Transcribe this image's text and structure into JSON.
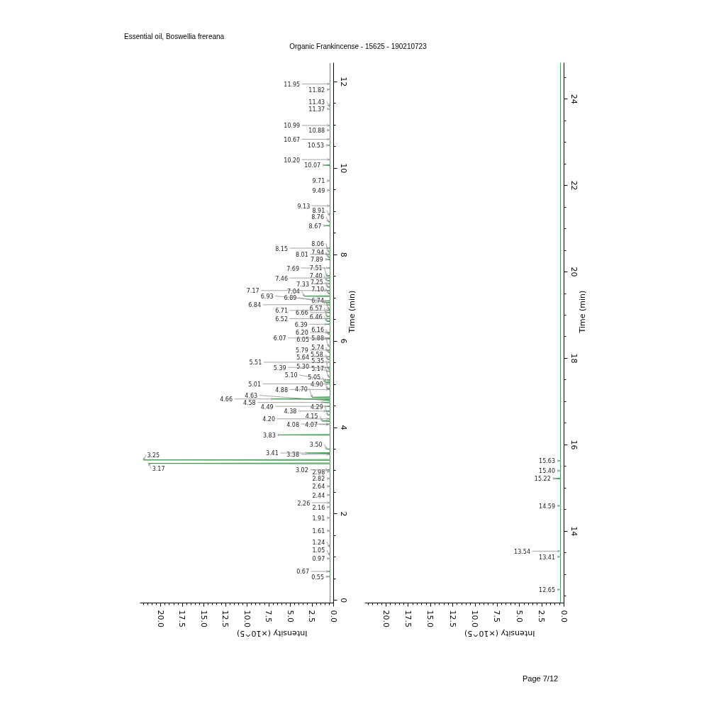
{
  "chart_data": [
    {
      "type": "line",
      "title": "Essential oil, Boswellia frereana",
      "subtitle": "Organic Frankincense - 15625 - 190210723",
      "xlabel": "Intensity (×10^5)",
      "ylabel": "Time (min)",
      "xlim": [
        22.4,
        0
      ],
      "ylim": [
        -0.06,
        12.44
      ],
      "xticks": [
        {
          "value": 0,
          "label": "0.0"
        },
        {
          "value": 0.5,
          "label": null
        },
        {
          "value": 1,
          "label": null
        },
        {
          "value": 1.5,
          "label": null
        },
        {
          "value": 2,
          "label": null
        },
        2.5,
        {
          "value": 3,
          "label": null
        },
        {
          "value": 3.5,
          "label": null
        },
        {
          "value": 4,
          "label": null
        },
        {
          "value": 4.5,
          "label": null
        },
        {
          "value": 5,
          "label": "5.0"
        },
        {
          "value": 5.5,
          "label": null
        },
        {
          "value": 6,
          "label": null
        },
        {
          "value": 6.5,
          "label": null
        },
        {
          "value": 7,
          "label": null
        },
        7.5,
        {
          "value": 8,
          "label": null
        },
        {
          "value": 8.5,
          "label": null
        },
        {
          "value": 9,
          "label": null
        },
        {
          "value": 9.5,
          "label": null
        },
        {
          "value": 10,
          "label": "10.0"
        },
        {
          "value": 10.5,
          "label": null
        },
        {
          "value": 11,
          "label": null
        },
        {
          "value": 11.5,
          "label": null
        },
        {
          "value": 12,
          "label": null
        },
        12.5,
        {
          "value": 13,
          "label": null
        },
        {
          "value": 13.5,
          "label": null
        },
        {
          "value": 14,
          "label": null
        },
        {
          "value": 14.5,
          "label": null
        },
        {
          "value": 15,
          "label": "15.0"
        },
        {
          "value": 15.5,
          "label": null
        },
        {
          "value": 16,
          "label": null
        },
        {
          "value": 16.5,
          "label": null
        },
        {
          "value": 17,
          "label": null
        },
        17.5,
        {
          "value": 18,
          "label": null
        },
        {
          "value": 18.5,
          "label": null
        },
        {
          "value": 19,
          "label": null
        },
        {
          "value": 19.5,
          "label": null
        },
        {
          "value": 20,
          "label": "20.0"
        },
        {
          "value": 20.5,
          "label": null
        },
        {
          "value": 21,
          "label": null
        },
        {
          "value": 21.5,
          "label": null
        },
        {
          "value": 22,
          "label": null
        }
      ],
      "yticks": [
        0,
        {
          "value": 0.5,
          "label": null
        },
        {
          "value": 1,
          "label": null
        },
        {
          "value": 1.5,
          "label": null
        },
        2,
        {
          "value": 2.5,
          "label": null
        },
        {
          "value": 3,
          "label": null
        },
        {
          "value": 3.5,
          "label": null
        },
        4,
        {
          "value": 4.5,
          "label": null
        },
        {
          "value": 5,
          "label": null
        },
        {
          "value": 5.5,
          "label": null
        },
        6,
        {
          "value": 6.5,
          "label": null
        },
        {
          "value": 7,
          "label": null
        },
        {
          "value": 7.5,
          "label": null
        },
        8,
        {
          "value": 8.5,
          "label": null
        },
        {
          "value": 9,
          "label": null
        },
        {
          "value": 9.5,
          "label": null
        },
        10,
        {
          "value": 10.5,
          "label": null
        },
        {
          "value": 11,
          "label": null
        },
        {
          "value": 11.5,
          "label": null
        },
        12
      ],
      "series": [
        {
          "color": "#3c9a4c",
          "x": [
            0.4,
            0.4,
            0.6,
            0.4,
            0.4,
            0.6,
            0.4,
            0.4,
            0.5,
            0.4,
            0.4,
            0.5,
            0.4,
            0.4,
            0.5,
            0.4,
            0.4,
            0.5,
            0.4,
            0.4,
            0.5,
            0.4,
            0.4,
            0.5,
            0.4,
            0.4,
            0.5,
            0.4,
            0.4,
            0.5,
            0.4,
            0.4,
            0.5,
            0.4,
            0.4,
            0.5,
            0.4,
            0.4,
            0.5,
            0.4,
            0.4,
            0.7,
            0.4,
            0.4,
            21.4,
            0.4,
            0.4,
            22.0,
            0.4,
            0.4,
            0.6,
            0.4,
            0.4,
            3.0,
            0.4,
            0.4,
            0.8,
            0.4,
            0.4,
            6.2,
            0.4,
            0.4,
            0.6,
            0.6,
            0.4,
            0.4,
            1.3,
            0.4,
            0.4,
            0.6,
            0.4,
            0.4,
            0.7,
            0.4,
            0.4,
            0.9,
            0.4,
            0.4,
            0.8,
            0.4,
            0.4,
            1.2,
            0.4,
            0.4,
            1.0,
            0.4,
            0.4,
            7.0,
            0.4,
            0.4,
            2.5,
            0.4,
            0.4,
            0.6,
            0.4,
            0.7,
            0.4,
            0.4,
            0.6,
            0.4,
            0.4,
            1.0,
            0.4,
            0.4,
            0.8,
            0.4,
            0.4,
            0.6,
            0.4,
            0.4,
            0.6,
            0.4,
            0.4,
            0.6,
            0.4,
            0.4,
            0.8,
            0.4,
            0.4,
            0.5,
            0.4,
            0.4,
            0.7,
            0.4,
            0.4,
            0.6,
            0.4,
            0.4,
            0.6,
            0.4,
            0.4,
            0.7,
            0.4,
            0.4,
            0.6,
            0.4,
            0.4,
            0.6,
            0.4,
            0.8,
            0.4,
            0.4,
            0.6,
            0.4,
            0.4,
            0.7,
            0.4,
            0.4,
            0.8,
            0.4,
            0.4,
            0.8,
            0.4,
            0.4,
            0.6,
            0.4,
            0.4,
            0.8,
            0.4,
            0.4,
            0.7,
            0.4,
            0.4,
            0.6,
            0.4,
            0.4,
            0.6,
            0.4,
            0.4,
            0.6,
            0.4,
            0.4,
            0.9,
            0.4,
            0.4,
            0.8,
            0.4,
            0.4,
            3.4,
            0.4,
            0.4,
            0.6,
            0.4,
            0.4,
            0.8,
            0.4,
            0.4,
            0.7,
            0.4,
            0.4,
            0.6,
            0.4,
            0.4,
            0.8,
            0.4,
            0.4,
            0.6,
            0.4,
            0.4,
            0.8,
            0.4,
            0.4,
            0.6,
            0.4,
            0.4,
            0.7,
            0.4,
            0.4,
            0.6,
            0.4,
            0.4,
            0.7,
            0.4,
            0.4,
            0.6,
            0.4,
            0.4,
            0.6,
            0.4,
            0.4,
            0.9,
            0.4,
            0.4,
            0.6,
            0.4,
            0.4,
            0.5,
            0.4,
            0.4,
            0.5,
            0.4,
            0.4,
            0.5,
            0.4,
            0.4,
            0.5,
            0.4,
            0.4,
            1.0,
            0.4,
            0.4,
            0.5,
            0.4,
            0.4,
            0.6,
            0.4,
            0.4,
            0.5,
            0.4,
            0.4,
            0.5,
            0.4,
            0.4,
            0.5,
            0.4,
            0.4,
            0.5,
            0.4,
            0.4,
            0.5,
            0.4,
            0.4,
            0.5,
            0.4,
            0.4,
            0.5,
            0.4,
            0.4
          ],
          "values": [
            -0.06,
            0.54,
            0.55,
            0.56,
            0.66,
            0.67,
            0.68,
            0.96,
            0.97,
            0.98,
            1.04,
            1.05,
            1.06,
            1.23,
            1.24,
            1.25,
            1.6,
            1.61,
            1.62,
            1.9,
            1.91,
            1.92,
            2.15,
            2.16,
            2.17,
            2.25,
            2.26,
            2.27,
            2.43,
            2.44,
            2.45,
            2.63,
            2.64,
            2.65,
            2.81,
            2.82,
            2.83,
            2.97,
            2.98,
            2.99,
            3.01,
            3.02,
            3.03,
            3.16,
            3.17,
            3.18,
            3.24,
            3.25,
            3.26,
            3.37,
            3.38,
            3.39,
            3.4,
            3.41,
            3.42,
            3.49,
            3.5,
            3.51,
            3.82,
            3.83,
            3.84,
            4.06,
            4.07,
            4.08,
            4.09,
            4.14,
            4.15,
            4.16,
            4.19,
            4.2,
            4.21,
            4.28,
            4.29,
            4.3,
            4.37,
            4.38,
            4.39,
            4.48,
            4.49,
            4.5,
            4.57,
            4.58,
            4.59,
            4.62,
            4.63,
            4.64,
            4.65,
            4.66,
            4.67,
            4.69,
            4.7,
            4.71,
            4.87,
            4.88,
            4.89,
            4.9,
            4.91,
            5,
            5.01,
            5.02,
            5.04,
            5.05,
            5.06,
            5.09,
            5.1,
            5.11,
            5.16,
            5.17,
            5.18,
            5.29,
            5.3,
            5.31,
            5.34,
            5.35,
            5.36,
            5.38,
            5.39,
            5.4,
            5.5,
            5.51,
            5.52,
            5.57,
            5.58,
            5.59,
            5.63,
            5.64,
            5.65,
            5.73,
            5.74,
            5.75,
            5.78,
            5.79,
            5.8,
            5.87,
            5.88,
            5.89,
            6.04,
            6.05,
            6.06,
            6.07,
            6.08,
            6.15,
            6.16,
            6.17,
            6.19,
            6.2,
            6.21,
            6.38,
            6.39,
            6.4,
            6.45,
            6.46,
            6.47,
            6.51,
            6.52,
            6.53,
            6.56,
            6.57,
            6.58,
            6.65,
            6.66,
            6.67,
            6.7,
            6.71,
            6.72,
            6.73,
            6.74,
            6.75,
            6.83,
            6.84,
            6.85,
            6.88,
            6.89,
            6.9,
            6.92,
            6.93,
            6.94,
            7.03,
            7.04,
            7.05,
            7.09,
            7.1,
            7.11,
            7.16,
            7.17,
            7.18,
            7.24,
            7.25,
            7.26,
            7.32,
            7.33,
            7.34,
            7.39,
            7.4,
            7.41,
            7.45,
            7.46,
            7.47,
            7.5,
            7.51,
            7.52,
            7.68,
            7.69,
            7.7,
            7.88,
            7.89,
            7.9,
            7.93,
            7.94,
            7.95,
            8,
            8.01,
            8.02,
            8.05,
            8.06,
            8.07,
            8.14,
            8.15,
            8.16,
            8.66,
            8.67,
            8.68,
            8.75,
            8.76,
            8.77,
            8.9,
            8.91,
            8.92,
            9.12,
            9.13,
            9.14,
            9.48,
            9.49,
            9.5,
            9.7,
            9.71,
            9.72,
            10.06,
            10.07,
            10.08,
            10.19,
            10.2,
            10.21,
            10.52,
            10.53,
            10.54,
            10.66,
            10.67,
            10.68,
            10.87,
            10.88,
            10.89,
            10.98,
            10.99,
            11,
            11.36,
            11.37,
            11.38,
            11.42,
            11.43,
            11.44,
            11.81,
            11.82,
            11.83,
            11.94,
            11.95,
            11.96,
            12.44
          ]
        }
      ],
      "annotations": [
        {
          "text": "0.55",
          "x": 0.6,
          "y": 0.55
        },
        {
          "text": "0.67",
          "x": 0.6,
          "y": 0.67
        },
        {
          "text": "0.97",
          "x": 0.5,
          "y": 0.97
        },
        {
          "text": "1.05",
          "x": 0.5,
          "y": 1.05
        },
        {
          "text": "1.24",
          "x": 0.5,
          "y": 1.24
        },
        {
          "text": "1.61",
          "x": 0.5,
          "y": 1.61
        },
        {
          "text": "1.91",
          "x": 0.5,
          "y": 1.91
        },
        {
          "text": "2.16",
          "x": 0.5,
          "y": 2.16
        },
        {
          "text": "2.26",
          "x": 0.5,
          "y": 2.26
        },
        {
          "text": "2.44",
          "x": 0.5,
          "y": 2.44
        },
        {
          "text": "2.64",
          "x": 0.5,
          "y": 2.64
        },
        {
          "text": "2.82",
          "x": 0.5,
          "y": 2.82
        },
        {
          "text": "2.98",
          "x": 0.5,
          "y": 2.98
        },
        {
          "text": "3.02",
          "x": 0.7,
          "y": 3.02
        },
        {
          "text": "3.17",
          "x": 21.4,
          "y": 3.17
        },
        {
          "text": "3.25",
          "x": 22.0,
          "y": 3.25
        },
        {
          "text": "3.38",
          "x": 0.6,
          "y": 3.38
        },
        {
          "text": "3.41",
          "x": 3.0,
          "y": 3.41
        },
        {
          "text": "3.50",
          "x": 0.8,
          "y": 3.5
        },
        {
          "text": "3.83",
          "x": 6.2,
          "y": 3.83
        },
        {
          "text": "4.07",
          "x": 0.6,
          "y": 4.07
        },
        {
          "text": "4.08",
          "x": 0.6,
          "y": 4.08
        },
        {
          "text": "4.15",
          "x": 1.3,
          "y": 4.15
        },
        {
          "text": "4.20",
          "x": 0.6,
          "y": 4.2
        },
        {
          "text": "4.29",
          "x": 0.7,
          "y": 4.29
        },
        {
          "text": "4.38",
          "x": 0.9,
          "y": 4.38
        },
        {
          "text": "4.49",
          "x": 0.8,
          "y": 4.49
        },
        {
          "text": "4.58",
          "x": 1.2,
          "y": 4.58
        },
        {
          "text": "4.63",
          "x": 1.0,
          "y": 4.63
        },
        {
          "text": "4.66",
          "x": 7.0,
          "y": 4.66
        },
        {
          "text": "4.70",
          "x": 2.5,
          "y": 4.7
        },
        {
          "text": "4.88",
          "x": 0.6,
          "y": 4.88
        },
        {
          "text": "4.90",
          "x": 0.7,
          "y": 4.9
        },
        {
          "text": "5.01",
          "x": 0.6,
          "y": 5.01
        },
        {
          "text": "5.05",
          "x": 1.0,
          "y": 5.05
        },
        {
          "text": "5.10",
          "x": 0.8,
          "y": 5.1
        },
        {
          "text": "5.17",
          "x": 0.6,
          "y": 5.17
        },
        {
          "text": "5.30",
          "x": 0.6,
          "y": 5.3
        },
        {
          "text": "5.35",
          "x": 0.6,
          "y": 5.35
        },
        {
          "text": "5.39",
          "x": 0.8,
          "y": 5.39
        },
        {
          "text": "5.51",
          "x": 0.5,
          "y": 5.51
        },
        {
          "text": "5.58",
          "x": 0.7,
          "y": 5.58
        },
        {
          "text": "5.64",
          "x": 0.6,
          "y": 5.64
        },
        {
          "text": "5.74",
          "x": 0.6,
          "y": 5.74
        },
        {
          "text": "5.79",
          "x": 0.7,
          "y": 5.79
        },
        {
          "text": "5.88",
          "x": 0.6,
          "y": 5.88
        },
        {
          "text": "6.05",
          "x": 0.6,
          "y": 6.05
        },
        {
          "text": "6.07",
          "x": 0.8,
          "y": 6.07
        },
        {
          "text": "6.16",
          "x": 0.6,
          "y": 6.16
        },
        {
          "text": "6.20",
          "x": 0.7,
          "y": 6.2
        },
        {
          "text": "6.39",
          "x": 0.8,
          "y": 6.39
        },
        {
          "text": "6.46",
          "x": 0.8,
          "y": 6.46
        },
        {
          "text": "6.52",
          "x": 0.6,
          "y": 6.52
        },
        {
          "text": "6.57",
          "x": 0.8,
          "y": 6.57
        },
        {
          "text": "6.66",
          "x": 0.7,
          "y": 6.66
        },
        {
          "text": "6.71",
          "x": 0.6,
          "y": 6.71
        },
        {
          "text": "6.74",
          "x": 0.6,
          "y": 6.74
        },
        {
          "text": "6.84",
          "x": 0.6,
          "y": 6.84
        },
        {
          "text": "6.89",
          "x": 0.9,
          "y": 6.89
        },
        {
          "text": "6.93",
          "x": 0.8,
          "y": 6.93
        },
        {
          "text": "7.04",
          "x": 3.4,
          "y": 7.04
        },
        {
          "text": "7.10",
          "x": 0.6,
          "y": 7.1
        },
        {
          "text": "7.17",
          "x": 0.8,
          "y": 7.17
        },
        {
          "text": "7.25",
          "x": 0.7,
          "y": 7.25
        },
        {
          "text": "7.33",
          "x": 0.6,
          "y": 7.33
        },
        {
          "text": "7.40",
          "x": 0.8,
          "y": 7.4
        },
        {
          "text": "7.46",
          "x": 0.6,
          "y": 7.46
        },
        {
          "text": "7.51",
          "x": 0.8,
          "y": 7.51
        },
        {
          "text": "7.69",
          "x": 0.6,
          "y": 7.69
        },
        {
          "text": "7.89",
          "x": 0.7,
          "y": 7.89
        },
        {
          "text": "7.94",
          "x": 0.6,
          "y": 7.94
        },
        {
          "text": "8.01",
          "x": 0.7,
          "y": 8.01
        },
        {
          "text": "8.06",
          "x": 0.6,
          "y": 8.06
        },
        {
          "text": "8.15",
          "x": 0.6,
          "y": 8.15
        },
        {
          "text": "8.67",
          "x": 0.9,
          "y": 8.67
        },
        {
          "text": "8.76",
          "x": 0.6,
          "y": 8.76
        },
        {
          "text": "8.91",
          "x": 0.5,
          "y": 8.91
        },
        {
          "text": "9.13",
          "x": 0.5,
          "y": 9.13
        },
        {
          "text": "9.49",
          "x": 0.5,
          "y": 9.49
        },
        {
          "text": "9.71",
          "x": 0.5,
          "y": 9.71
        },
        {
          "text": "10.07",
          "x": 1.0,
          "y": 10.07
        },
        {
          "text": "10.20",
          "x": 0.5,
          "y": 10.2
        },
        {
          "text": "10.53",
          "x": 0.6,
          "y": 10.53
        },
        {
          "text": "10.67",
          "x": 0.5,
          "y": 10.67
        },
        {
          "text": "10.88",
          "x": 0.5,
          "y": 10.88
        },
        {
          "text": "10.99",
          "x": 0.5,
          "y": 10.99
        },
        {
          "text": "11.37",
          "x": 0.5,
          "y": 11.37
        },
        {
          "text": "11.43",
          "x": 0.5,
          "y": 11.43
        },
        {
          "text": "11.82",
          "x": 0.5,
          "y": 11.82
        },
        {
          "text": "11.95",
          "x": 0.5,
          "y": 11.95
        }
      ]
    },
    {
      "type": "line",
      "xlabel": "Intensity (×10^5)",
      "ylabel": "Time (min)",
      "xlim": [
        22.4,
        0
      ],
      "ylim": [
        12.34,
        24.84
      ],
      "xticks": [
        {
          "value": 0,
          "label": "0.0"
        },
        {
          "value": 0.5,
          "label": null
        },
        {
          "value": 1,
          "label": null
        },
        {
          "value": 1.5,
          "label": null
        },
        {
          "value": 2,
          "label": null
        },
        2.5,
        {
          "value": 3,
          "label": null
        },
        {
          "value": 3.5,
          "label": null
        },
        {
          "value": 4,
          "label": null
        },
        {
          "value": 4.5,
          "label": null
        },
        {
          "value": 5,
          "label": "5.0"
        },
        {
          "value": 5.5,
          "label": null
        },
        {
          "value": 6,
          "label": null
        },
        {
          "value": 6.5,
          "label": null
        },
        {
          "value": 7,
          "label": null
        },
        7.5,
        {
          "value": 8,
          "label": null
        },
        {
          "value": 8.5,
          "label": null
        },
        {
          "value": 9,
          "label": null
        },
        {
          "value": 9.5,
          "label": null
        },
        {
          "value": 10,
          "label": "10.0"
        },
        {
          "value": 10.5,
          "label": null
        },
        {
          "value": 11,
          "label": null
        },
        {
          "value": 11.5,
          "label": null
        },
        {
          "value": 12,
          "label": null
        },
        12.5,
        {
          "value": 13,
          "label": null
        },
        {
          "value": 13.5,
          "label": null
        },
        {
          "value": 14,
          "label": null
        },
        {
          "value": 14.5,
          "label": null
        },
        {
          "value": 15,
          "label": "15.0"
        },
        {
          "value": 15.5,
          "label": null
        },
        {
          "value": 16,
          "label": null
        },
        {
          "value": 16.5,
          "label": null
        },
        {
          "value": 17,
          "label": null
        },
        17.5,
        {
          "value": 18,
          "label": null
        },
        {
          "value": 18.5,
          "label": null
        },
        {
          "value": 19,
          "label": null
        },
        {
          "value": 19.5,
          "label": null
        },
        {
          "value": 20,
          "label": "20.0"
        },
        {
          "value": 20.5,
          "label": null
        },
        {
          "value": 21,
          "label": null
        },
        {
          "value": 21.5,
          "label": null
        },
        {
          "value": 22,
          "label": null
        }
      ],
      "yticks": [
        {
          "value": 12.5,
          "label": null
        },
        {
          "value": 13,
          "label": null
        },
        {
          "value": 13.5,
          "label": null
        },
        14,
        {
          "value": 14.5,
          "label": null
        },
        {
          "value": 15,
          "label": null
        },
        {
          "value": 15.5,
          "label": null
        },
        16,
        {
          "value": 16.5,
          "label": null
        },
        {
          "value": 17,
          "label": null
        },
        {
          "value": 17.5,
          "label": null
        },
        18,
        {
          "value": 18.5,
          "label": null
        },
        {
          "value": 19,
          "label": null
        },
        {
          "value": 19.5,
          "label": null
        },
        20,
        {
          "value": 20.5,
          "label": null
        },
        {
          "value": 21,
          "label": null
        },
        {
          "value": 21.5,
          "label": null
        },
        22,
        {
          "value": 22.5,
          "label": null
        },
        {
          "value": 23,
          "label": null
        },
        {
          "value": 23.5,
          "label": null
        },
        24,
        {
          "value": 24.5,
          "label": null
        }
      ],
      "series": [
        {
          "color": "#3c9a4c",
          "x": [
            0.4,
            0.4,
            0.5,
            0.4,
            0.4,
            0.5,
            0.4,
            0.4,
            0.5,
            0.4,
            0.4,
            0.5,
            0.4,
            0.4,
            1.0,
            0.4,
            0.4,
            0.5,
            0.4,
            0.4,
            0.5,
            0.4,
            0.4
          ],
          "values": [
            12.34,
            12.64,
            12.65,
            12.66,
            13.4,
            13.41,
            13.42,
            13.53,
            13.54,
            13.55,
            14.58,
            14.59,
            14.6,
            15.21,
            15.22,
            15.23,
            15.39,
            15.4,
            15.41,
            15.62,
            15.63,
            15.64,
            24.84
          ]
        }
      ],
      "annotations": [
        {
          "text": "12.65",
          "x": 0.5,
          "y": 12.65
        },
        {
          "text": "13.41",
          "x": 0.5,
          "y": 13.41
        },
        {
          "text": "13.54",
          "x": 0.5,
          "y": 13.54
        },
        {
          "text": "14.59",
          "x": 0.5,
          "y": 14.59
        },
        {
          "text": "15.22",
          "x": 1.0,
          "y": 15.22
        },
        {
          "text": "15.40",
          "x": 0.5,
          "y": 15.4
        },
        {
          "text": "15.63",
          "x": 0.5,
          "y": 15.63
        },
        "Page 7/12"
      ]
    }
  ]
}
